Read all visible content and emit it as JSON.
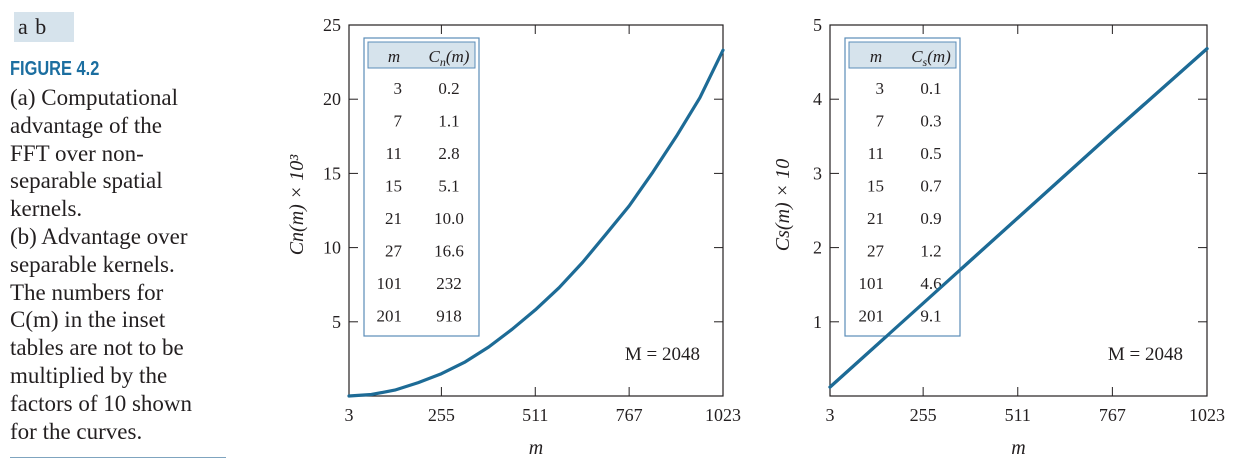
{
  "caption": {
    "panel_labels": "a b",
    "figure_title": "FIGURE 4.2",
    "body_lines": [
      "(a) Computational",
      "advantage of the",
      "FFT over non-",
      "separable spatial",
      "kernels.",
      "(b) Advantage over",
      "separable kernels.",
      "The numbers for",
      "C(m) in the inset",
      "tables are not to be",
      "multiplied by the",
      "factors of 10 shown",
      "for the curves."
    ]
  },
  "colors": {
    "curve": "#1d6b96",
    "table_border": "#5b8db8",
    "table_header_bg": "#d6e3ec",
    "caption_title": "#1b6ea0"
  },
  "chart_data": [
    {
      "type": "line",
      "panel": "a",
      "xlabel": "m",
      "ylabel": "Cn(m) × 10³",
      "xlim": [
        3,
        1023
      ],
      "ylim": [
        0,
        25
      ],
      "xticks": [
        3,
        255,
        511,
        767,
        1023
      ],
      "yticks": [
        5,
        10,
        15,
        20,
        25
      ],
      "grid": false,
      "annotation": "M = 2048",
      "series": [
        {
          "x": [
            3,
            64,
            128,
            192,
            255,
            320,
            384,
            448,
            511,
            576,
            640,
            704,
            767,
            832,
            896,
            960,
            1023
          ],
          "y": [
            0.0,
            0.1,
            0.4,
            0.9,
            1.5,
            2.3,
            3.3,
            4.5,
            5.8,
            7.3,
            9.0,
            10.9,
            12.8,
            15.1,
            17.5,
            20.1,
            23.3
          ]
        }
      ],
      "inset_table": {
        "col1_main": "m",
        "col2_main": "C",
        "col2_sub": "n",
        "col2_tail": "(m)",
        "rows": [
          [
            "3",
            "0.2"
          ],
          [
            "7",
            "1.1"
          ],
          [
            "11",
            "2.8"
          ],
          [
            "15",
            "5.1"
          ],
          [
            "21",
            "10.0"
          ],
          [
            "27",
            "16.6"
          ],
          [
            "101",
            "232"
          ],
          [
            "201",
            "918"
          ]
        ]
      }
    },
    {
      "type": "line",
      "panel": "b",
      "xlabel": "m",
      "ylabel": "Cs(m) × 10",
      "xlim": [
        3,
        1023
      ],
      "ylim": [
        0,
        5
      ],
      "xticks": [
        3,
        255,
        511,
        767,
        1023
      ],
      "yticks": [
        1,
        2,
        3,
        4,
        5
      ],
      "grid": false,
      "annotation": "M = 2048",
      "series": [
        {
          "x": [
            3,
            255,
            511,
            767,
            1023
          ],
          "y": [
            0.12,
            1.25,
            2.4,
            3.55,
            4.68
          ]
        }
      ],
      "inset_table": {
        "col1_main": "m",
        "col2_main": "C",
        "col2_sub": "s",
        "col2_tail": "(m)",
        "rows": [
          [
            "3",
            "0.1"
          ],
          [
            "7",
            "0.3"
          ],
          [
            "11",
            "0.5"
          ],
          [
            "15",
            "0.7"
          ],
          [
            "21",
            "0.9"
          ],
          [
            "27",
            "1.2"
          ],
          [
            "101",
            "4.6"
          ],
          [
            "201",
            "9.1"
          ]
        ]
      }
    }
  ]
}
